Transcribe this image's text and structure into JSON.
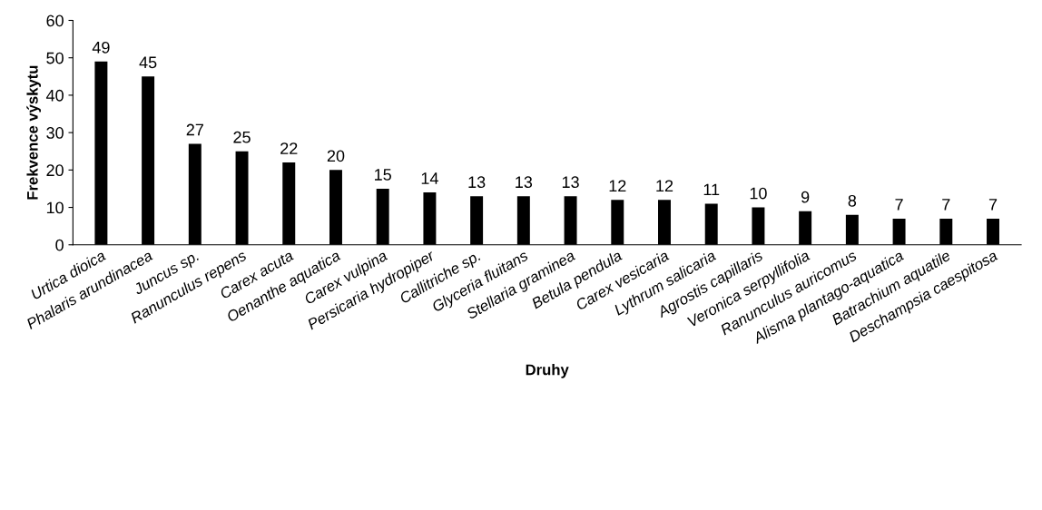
{
  "chart_data": {
    "type": "bar",
    "xlabel": "Druhy",
    "ylabel": "Frekvence výskytu",
    "categories": [
      "Urtica dioica",
      "Phalaris arundinacea",
      "Juncus sp.",
      "Ranunculus repens",
      "Carex acuta",
      "Oenanthe aquatica",
      "Carex vulpina",
      "Persicaria hydropiper",
      "Callitriche sp.",
      "Glyceria fluitans",
      "Stellaria graminea",
      "Betula pendula",
      "Carex vesicaria",
      "Lythrum salicaria",
      "Agrostis capillaris",
      "Veronica serpyllifolia",
      "Ranunculus auricomus",
      "Alisma plantago-aquatica",
      "Batrachium aquatile",
      "Deschampsia caespitosa"
    ],
    "values": [
      49,
      45,
      27,
      25,
      22,
      20,
      15,
      14,
      13,
      13,
      13,
      12,
      12,
      11,
      10,
      9,
      8,
      7,
      7,
      7
    ],
    "color": "#000000",
    "ylim": [
      0,
      60
    ],
    "yticks": [
      0,
      10,
      20,
      30,
      40,
      50,
      60
    ],
    "grid": false,
    "data_labels": true
  }
}
